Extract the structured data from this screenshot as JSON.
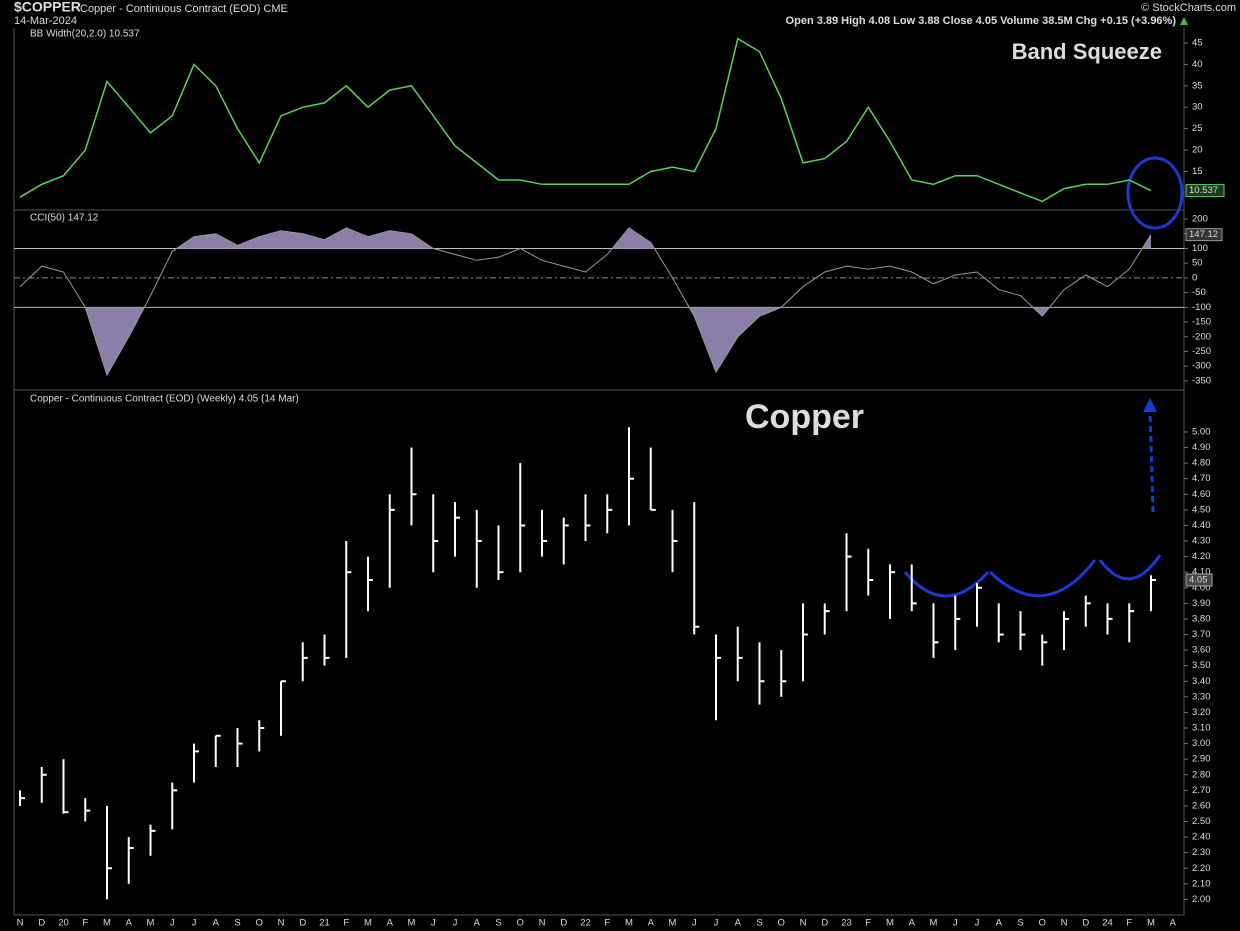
{
  "header": {
    "symbol": "$COPPER",
    "name": "Copper - Continuous Contract (EOD) CME",
    "date": "14-Mar-2024",
    "quote": "Open 3.89 High 4.08 Low 3.88 Close 4.05 Volume 38.5M Chg +0.15 (+3.96%)",
    "credit": "© StockCharts.com"
  },
  "chart_data": [
    {
      "type": "line",
      "title": "BB Width(20,2.0) 10.537",
      "color": "#56d456",
      "annotation": "Band Squeeze",
      "ylim": [
        6,
        48.5
      ],
      "yticks": [
        15,
        20,
        25,
        30,
        35,
        40,
        45
      ],
      "values": [
        9,
        12,
        14,
        20,
        36,
        30,
        24,
        28,
        40,
        35,
        25,
        17,
        28,
        30,
        31,
        35,
        30,
        34,
        35,
        28,
        21,
        17,
        13,
        13,
        12,
        12,
        12,
        12,
        12,
        15,
        16,
        15,
        25,
        46,
        43,
        32,
        17,
        18,
        22,
        30,
        22,
        13,
        12,
        14,
        14,
        12,
        10,
        8,
        11,
        12,
        12,
        13,
        10.537,
        null
      ]
    },
    {
      "type": "cci",
      "title": "CCI(50) 147.12",
      "color": "#9a9a9a",
      "fill": "#8a7fa8",
      "ylim": [
        -381,
        224
      ],
      "yticks": [
        200,
        150,
        100,
        50,
        0,
        -50,
        -100,
        -150,
        -200,
        -250,
        -300,
        -350
      ],
      "reference_lines": [
        100,
        -100,
        0
      ],
      "values": [
        -30,
        40,
        20,
        -100,
        -330,
        -200,
        -60,
        90,
        140,
        150,
        110,
        140,
        160,
        150,
        130,
        170,
        140,
        160,
        150,
        100,
        80,
        60,
        70,
        100,
        60,
        40,
        20,
        80,
        170,
        120,
        0,
        -130,
        -320,
        -200,
        -130,
        -100,
        -30,
        20,
        40,
        30,
        40,
        20,
        -20,
        10,
        20,
        -40,
        -60,
        -130,
        -40,
        10,
        -30,
        30,
        147.12,
        null
      ]
    },
    {
      "type": "ohlc",
      "title": "Copper - Continuous Contract (EOD) (Weekly) 4.05 (14 Mar)",
      "color": "#ffffff",
      "annotation": "Copper",
      "ylim": [
        1.9,
        5.25
      ],
      "yticks": [
        {
          "value": 2,
          "label": "2.00"
        },
        {
          "value": 2.1,
          "label": "2.10"
        },
        {
          "value": 2.2,
          "label": "2.20"
        },
        {
          "value": 2.3,
          "label": "2.30"
        },
        {
          "value": 2.4,
          "label": "2.40"
        },
        {
          "value": 2.5,
          "label": "2.50"
        },
        {
          "value": 2.6,
          "label": "2.60"
        },
        {
          "value": 2.7,
          "label": "2.70"
        },
        {
          "value": 2.8,
          "label": "2.80"
        },
        {
          "value": 2.9,
          "label": "2.90"
        },
        {
          "value": 3,
          "label": "3.00"
        },
        {
          "value": 3.1,
          "label": "3.10"
        },
        {
          "value": 3.2,
          "label": "3.20"
        },
        {
          "value": 3.3,
          "label": "3.30"
        },
        {
          "value": 3.4,
          "label": "3.40"
        },
        {
          "value": 3.5,
          "label": "3.50"
        },
        {
          "value": 3.6,
          "label": "3.60"
        },
        {
          "value": 3.7,
          "label": "3.70"
        },
        {
          "value": 3.8,
          "label": "3.80"
        },
        {
          "value": 3.9,
          "label": "3.90"
        },
        {
          "value": 4,
          "label": "4.00"
        },
        {
          "value": 4.1,
          "label": "4.10"
        },
        {
          "value": 4.2,
          "label": "4.20"
        },
        {
          "value": 4.3,
          "label": "4.30"
        },
        {
          "value": 4.4,
          "label": "4.40"
        },
        {
          "value": 4.5,
          "label": "4.50"
        },
        {
          "value": 4.6,
          "label": "4.60"
        },
        {
          "value": 4.7,
          "label": "4.70"
        },
        {
          "value": 4.8,
          "label": "4.80"
        },
        {
          "value": 4.9,
          "label": "4.90"
        },
        {
          "value": 5,
          "label": "5.00"
        }
      ],
      "categories": [
        "N",
        "D",
        "20",
        "F",
        "M",
        "A",
        "M",
        "J",
        "J",
        "A",
        "S",
        "O",
        "N",
        "D",
        "21",
        "F",
        "M",
        "A",
        "M",
        "J",
        "J",
        "A",
        "S",
        "O",
        "N",
        "D",
        "22",
        "F",
        "M",
        "A",
        "M",
        "J",
        "J",
        "A",
        "S",
        "O",
        "N",
        "D",
        "23",
        "F",
        "M",
        "A",
        "M",
        "J",
        "J",
        "A",
        "S",
        "O",
        "N",
        "D",
        "24",
        "F",
        "M",
        "A"
      ],
      "high": [
        2.7,
        2.85,
        2.9,
        2.65,
        2.6,
        2.4,
        2.48,
        2.75,
        3.0,
        3.05,
        3.1,
        3.15,
        3.4,
        3.65,
        3.7,
        4.3,
        4.2,
        4.6,
        4.9,
        4.6,
        4.55,
        4.5,
        4.4,
        4.8,
        4.5,
        4.45,
        4.6,
        4.6,
        5.03,
        4.9,
        4.5,
        4.55,
        3.7,
        3.75,
        3.65,
        3.6,
        3.9,
        3.9,
        4.35,
        4.25,
        4.15,
        4.15,
        3.9,
        3.95,
        4.03,
        3.9,
        3.85,
        3.7,
        3.85,
        3.95,
        3.9,
        3.9,
        4.08,
        null
      ],
      "low": [
        2.6,
        2.62,
        2.55,
        2.5,
        2.0,
        2.1,
        2.28,
        2.45,
        2.75,
        2.85,
        2.85,
        2.95,
        3.05,
        3.4,
        3.5,
        3.55,
        3.85,
        4.0,
        4.4,
        4.1,
        4.2,
        4.0,
        4.05,
        4.1,
        4.2,
        4.15,
        4.3,
        4.35,
        4.4,
        4.5,
        4.1,
        3.7,
        3.15,
        3.4,
        3.25,
        3.3,
        3.4,
        3.7,
        3.85,
        3.95,
        3.8,
        3.85,
        3.55,
        3.6,
        3.75,
        3.65,
        3.6,
        3.5,
        3.6,
        3.75,
        3.7,
        3.65,
        3.85,
        null
      ],
      "close": [
        2.65,
        2.8,
        2.56,
        2.57,
        2.2,
        2.33,
        2.44,
        2.7,
        2.95,
        3.05,
        3.0,
        3.1,
        3.4,
        3.55,
        3.55,
        4.1,
        4.05,
        4.5,
        4.6,
        4.3,
        4.45,
        4.3,
        4.1,
        4.4,
        4.3,
        4.4,
        4.4,
        4.5,
        4.7,
        4.5,
        4.3,
        3.75,
        3.55,
        3.55,
        3.4,
        3.4,
        3.7,
        3.85,
        4.2,
        4.05,
        4.1,
        3.9,
        3.65,
        3.8,
        4.0,
        3.7,
        3.7,
        3.65,
        3.8,
        3.9,
        3.8,
        3.85,
        4.05,
        null
      ]
    }
  ]
}
